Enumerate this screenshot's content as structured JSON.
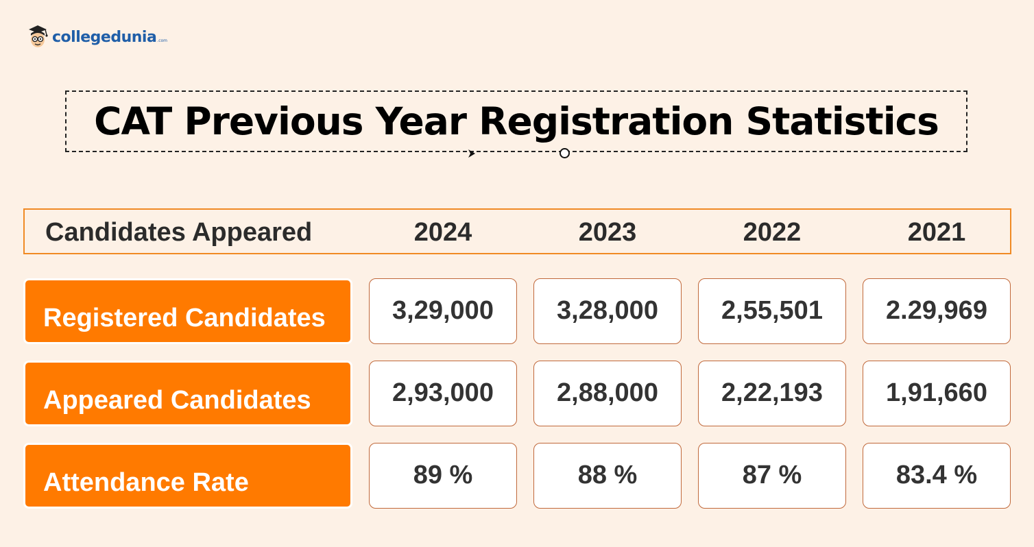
{
  "brand": {
    "name": "collegedunia",
    "suffix": ".com",
    "color": "#1f5ea8"
  },
  "title": "CAT Previous Year Registration Statistics",
  "table": {
    "header_label": "Candidates Appeared",
    "years": [
      "2024",
      "2023",
      "2022",
      "2021"
    ],
    "rows": [
      {
        "label": "Registered Candidates",
        "values": [
          "3,29,000",
          "3,28,000",
          "2,55,501",
          "2.29,969"
        ]
      },
      {
        "label": "Appeared Candidates",
        "values": [
          "2,93,000",
          "2,88,000",
          "2,22,193",
          "1,91,660"
        ]
      },
      {
        "label": "Attendance Rate",
        "values": [
          "89 %",
          "88 %",
          "87 %",
          "83.4 %"
        ]
      }
    ]
  },
  "colors": {
    "background": "#fdf1e6",
    "accent": "#ff7a00",
    "header_border": "#f08a24",
    "cell_border": "#c0683a"
  },
  "icons": {
    "logo": "mascot-logo-icon",
    "arrow": "arrow-right-icon",
    "circle": "circle-outline-icon"
  }
}
